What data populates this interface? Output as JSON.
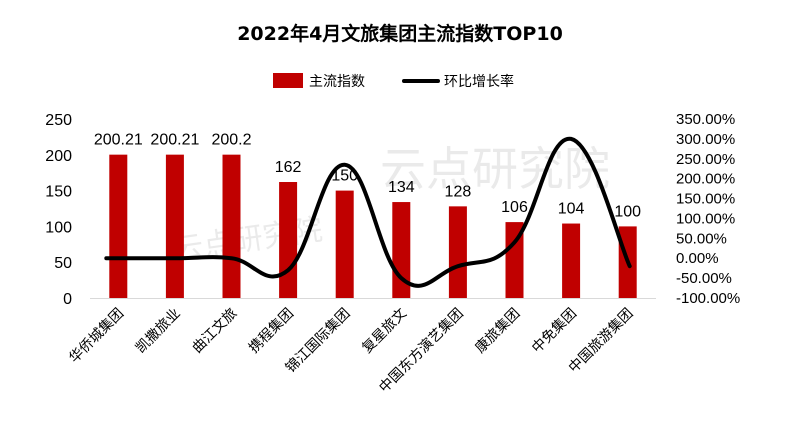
{
  "chart_data": {
    "type": "bar",
    "title": "2022年4月文旅集团主流指数TOP10",
    "categories": [
      "华侨城集团",
      "凯撒旅业",
      "曲江文旅",
      "携程集团",
      "锦江国际集团",
      "复星旅文",
      "中国东方演艺集团",
      "康旅集团",
      "中免集团",
      "中国旅游集团"
    ],
    "series": [
      {
        "name": "主流指数",
        "type": "bar",
        "axis": "left",
        "color": "#c00000",
        "values": [
          200.21,
          200.21,
          200.2,
          162,
          150,
          134,
          128,
          106,
          104,
          100
        ],
        "labels": [
          "200.21",
          "200.21",
          "200.2",
          "162",
          "150",
          "134",
          "128",
          "106",
          "104",
          "100"
        ]
      },
      {
        "name": "环比增长率",
        "type": "line",
        "axis": "right",
        "color": "#000000",
        "values": [
          0,
          0,
          0,
          -30,
          235,
          -50,
          -20,
          40,
          300,
          -20
        ]
      }
    ],
    "ylim": [
      0,
      250
    ],
    "yticks": [
      "0",
      "50",
      "100",
      "150",
      "200",
      "250"
    ],
    "y2lim": [
      -100,
      350
    ],
    "y2ticks": [
      "-100.00%",
      "-50.00%",
      "0.00%",
      "50.00%",
      "100.00%",
      "150.00%",
      "200.00%",
      "250.00%",
      "300.00%",
      "350.00%"
    ],
    "legend": "top-center",
    "grid": false,
    "watermark": "云点研究院"
  }
}
